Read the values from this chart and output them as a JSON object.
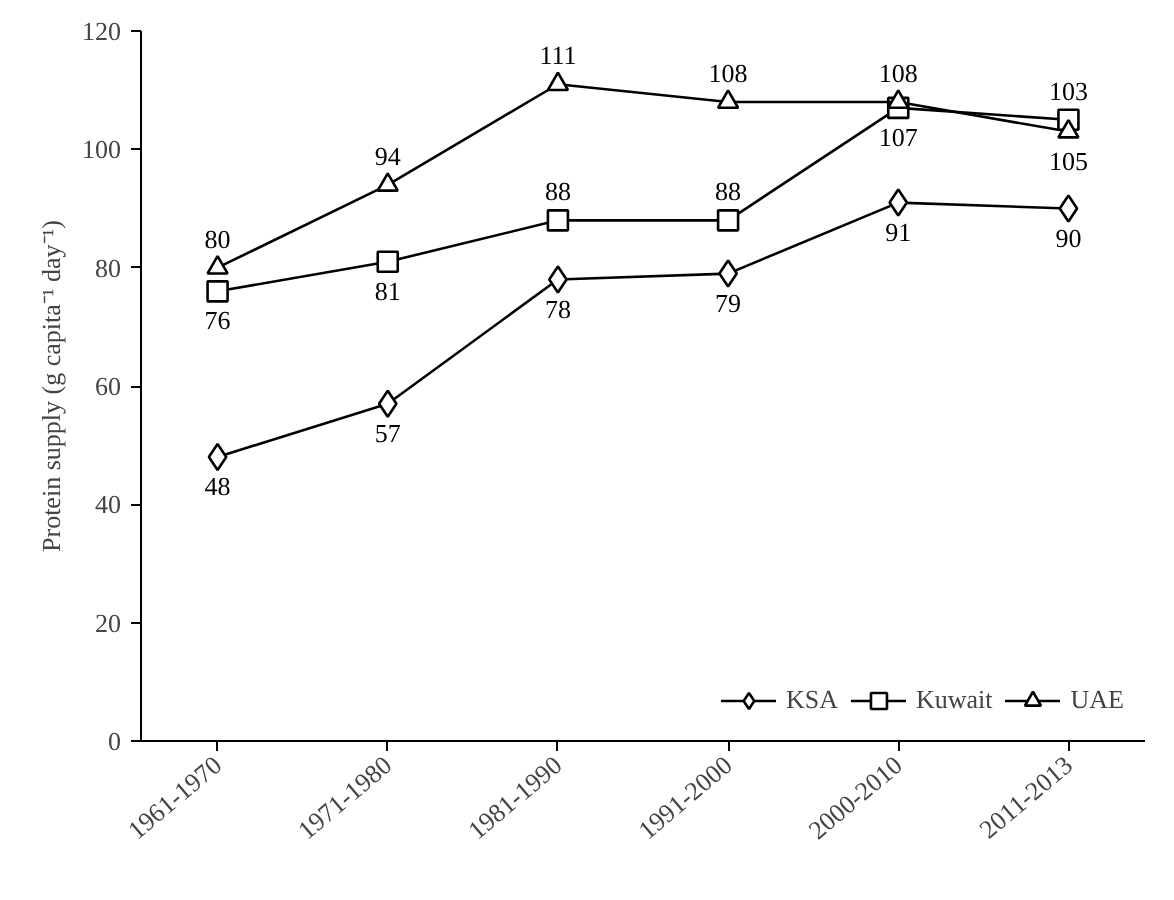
{
  "chart_data": {
    "type": "line",
    "ylabel": "Protein supply (g capita⁻¹ day⁻¹)",
    "categories": [
      "1961-1970",
      "1971-1980",
      "1981-1990",
      "1991-2000",
      "2000-2010",
      "2011-2013"
    ],
    "series": [
      {
        "name": "KSA",
        "color": "#000000",
        "marker": "diamond",
        "values": [
          48,
          57,
          78,
          79,
          91,
          90
        ]
      },
      {
        "name": "Kuwait",
        "color": "#000000",
        "marker": "square",
        "values": [
          76,
          81,
          88,
          88,
          107,
          105
        ]
      },
      {
        "name": "UAE",
        "color": "#000000",
        "marker": "triangle",
        "values": [
          80,
          94,
          111,
          108,
          108,
          103
        ]
      }
    ],
    "ylim": [
      0,
      120
    ],
    "yticks": [
      0,
      20,
      40,
      60,
      80,
      100,
      120
    ],
    "grid": false,
    "legend": "bottom right",
    "data_labels": true,
    "line_style": "solid"
  }
}
